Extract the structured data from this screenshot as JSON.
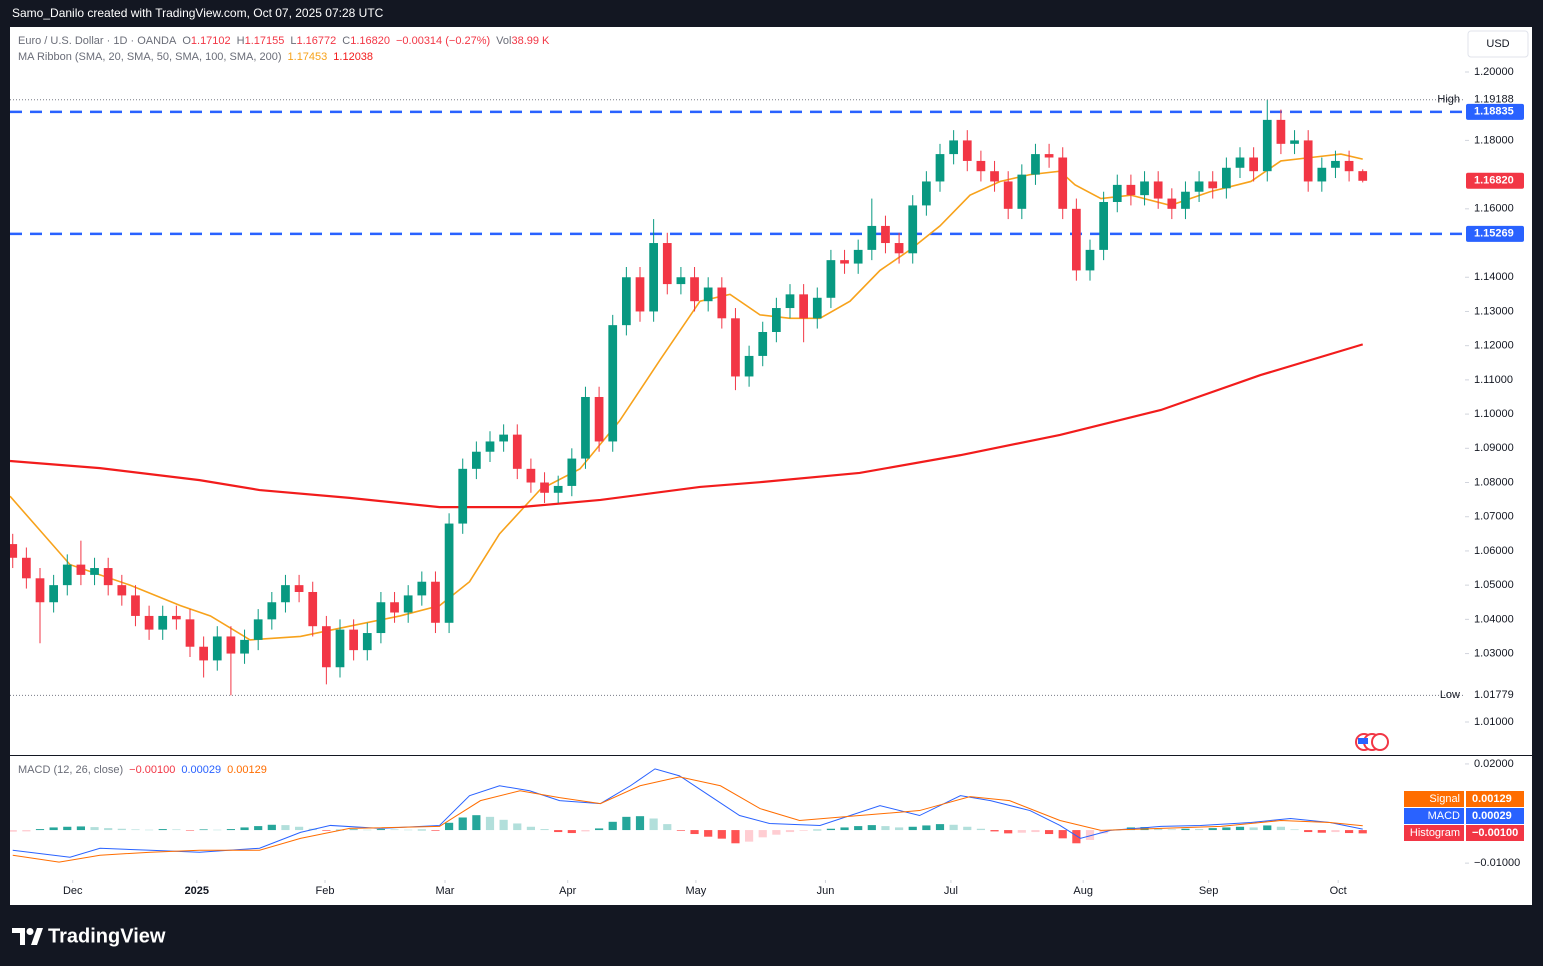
{
  "header": {
    "credit": "Samo_Danilo created with TradingView.com, Oct 07, 2025 07:28 UTC",
    "currency": "USD",
    "brand": "TradingView"
  },
  "chart_data": [
    {
      "type": "candlestick",
      "title": "Euro / U.S. Dollar · 1D · OANDA",
      "legend": [
        {
          "key": "O",
          "text": "1.17102"
        },
        {
          "key": "H",
          "text": "1.17155"
        },
        {
          "key": "L",
          "text": "1.16772"
        },
        {
          "key": "C",
          "text": "1.16820"
        }
      ],
      "change": "−0.00314 (−0.27%)",
      "volume_key": "Vol",
      "volume": "38.99 K",
      "overlay_title": "MA Ribbon (SMA, 20, SMA, 50, SMA, 100, SMA, 200)",
      "up_color": "#089981",
      "down_color": "#f23645",
      "open": [
        1.062,
        1.058,
        1.052,
        1.045,
        1.05,
        1.056,
        1.053,
        1.055,
        1.05,
        1.047,
        1.041,
        1.037,
        1.041,
        1.04,
        1.032,
        1.028,
        1.035,
        1.03,
        1.034,
        1.04,
        1.045,
        1.05,
        1.048,
        1.038,
        1.026,
        1.037,
        1.031,
        1.036,
        1.045,
        1.042,
        1.047,
        1.051,
        1.039,
        1.068,
        1.084,
        1.089,
        1.092,
        1.094,
        1.084,
        1.08,
        1.077,
        1.079,
        1.087,
        1.105,
        1.092,
        1.126,
        1.14,
        1.13,
        1.15,
        1.138,
        1.14,
        1.133,
        1.137,
        1.128,
        1.111,
        1.117,
        1.124,
        1.131,
        1.135,
        1.128,
        1.134,
        1.145,
        1.144,
        1.148,
        1.155,
        1.15,
        1.147,
        1.161,
        1.168,
        1.176,
        1.18,
        1.174,
        1.171,
        1.168,
        1.16,
        1.17,
        1.176,
        1.175,
        1.16,
        1.142,
        1.148,
        1.162,
        1.167,
        1.164,
        1.168,
        1.163,
        1.16,
        1.165,
        1.168,
        1.166,
        1.172,
        1.175,
        1.171,
        1.186,
        1.179,
        1.18,
        1.168,
        1.172,
        1.174,
        1.17102
      ],
      "high": [
        1.065,
        1.061,
        1.055,
        1.053,
        1.059,
        1.063,
        1.058,
        1.058,
        1.053,
        1.05,
        1.044,
        1.044,
        1.044,
        1.043,
        1.035,
        1.038,
        1.038,
        1.037,
        1.043,
        1.048,
        1.053,
        1.053,
        1.051,
        1.041,
        1.04,
        1.04,
        1.039,
        1.048,
        1.048,
        1.05,
        1.054,
        1.054,
        1.071,
        1.087,
        1.092,
        1.095,
        1.097,
        1.097,
        1.087,
        1.083,
        1.082,
        1.09,
        1.108,
        1.108,
        1.129,
        1.143,
        1.143,
        1.157,
        1.153,
        1.143,
        1.143,
        1.14,
        1.14,
        1.131,
        1.12,
        1.127,
        1.134,
        1.138,
        1.138,
        1.137,
        1.148,
        1.148,
        1.151,
        1.163,
        1.158,
        1.153,
        1.164,
        1.171,
        1.179,
        1.183,
        1.183,
        1.177,
        1.174,
        1.171,
        1.173,
        1.179,
        1.179,
        1.178,
        1.163,
        1.151,
        1.165,
        1.17,
        1.17,
        1.171,
        1.171,
        1.166,
        1.168,
        1.171,
        1.171,
        1.175,
        1.178,
        1.178,
        1.19188,
        1.189,
        1.183,
        1.183,
        1.175,
        1.177,
        1.177,
        1.17155
      ],
      "low": [
        1.055,
        1.049,
        1.033,
        1.042,
        1.047,
        1.05,
        1.05,
        1.047,
        1.044,
        1.038,
        1.034,
        1.034,
        1.037,
        1.029,
        1.023,
        1.025,
        1.01779,
        1.027,
        1.031,
        1.037,
        1.042,
        1.045,
        1.035,
        1.021,
        1.023,
        1.028,
        1.028,
        1.033,
        1.039,
        1.039,
        1.044,
        1.036,
        1.036,
        1.065,
        1.081,
        1.086,
        1.089,
        1.081,
        1.077,
        1.074,
        1.074,
        1.076,
        1.084,
        1.089,
        1.089,
        1.123,
        1.127,
        1.127,
        1.135,
        1.135,
        1.13,
        1.13,
        1.125,
        1.107,
        1.108,
        1.114,
        1.121,
        1.128,
        1.121,
        1.125,
        1.131,
        1.141,
        1.141,
        1.145,
        1.147,
        1.144,
        1.144,
        1.158,
        1.165,
        1.173,
        1.171,
        1.168,
        1.165,
        1.157,
        1.157,
        1.167,
        1.172,
        1.157,
        1.139,
        1.139,
        1.145,
        1.159,
        1.161,
        1.161,
        1.16,
        1.157,
        1.157,
        1.162,
        1.163,
        1.163,
        1.169,
        1.168,
        1.168,
        1.176,
        1.176,
        1.165,
        1.165,
        1.169,
        1.168,
        1.16772
      ],
      "close": [
        1.058,
        1.052,
        1.045,
        1.05,
        1.056,
        1.053,
        1.055,
        1.05,
        1.047,
        1.041,
        1.037,
        1.041,
        1.04,
        1.032,
        1.028,
        1.035,
        1.03,
        1.034,
        1.04,
        1.045,
        1.05,
        1.048,
        1.038,
        1.026,
        1.037,
        1.031,
        1.036,
        1.045,
        1.042,
        1.047,
        1.051,
        1.039,
        1.068,
        1.084,
        1.089,
        1.092,
        1.094,
        1.084,
        1.08,
        1.077,
        1.079,
        1.087,
        1.105,
        1.092,
        1.126,
        1.14,
        1.13,
        1.15,
        1.138,
        1.14,
        1.133,
        1.137,
        1.128,
        1.111,
        1.117,
        1.124,
        1.131,
        1.135,
        1.128,
        1.134,
        1.145,
        1.144,
        1.148,
        1.155,
        1.15,
        1.147,
        1.161,
        1.168,
        1.176,
        1.18,
        1.174,
        1.171,
        1.168,
        1.16,
        1.17,
        1.176,
        1.175,
        1.16,
        1.142,
        1.148,
        1.162,
        1.167,
        1.164,
        1.168,
        1.163,
        1.16,
        1.165,
        1.168,
        1.166,
        1.172,
        1.175,
        1.171,
        1.186,
        1.179,
        1.18,
        1.168,
        1.172,
        1.174,
        1.171,
        1.1682
      ],
      "last_label": "1.16820",
      "high_text": "High",
      "low_text": "Low",
      "levels": [
        1.18835,
        1.15269
      ],
      "level_color": "#2962ff",
      "series": [
        {
          "color": "#f7a21b",
          "x": [
            -0.2,
            2.0,
            4.2,
            8.6,
            12.3,
            14.5,
            17.4,
            21.1,
            24.7,
            28.4,
            31.3,
            33.5,
            35.7,
            38.7,
            41.6,
            44.5,
            47.5,
            50.4,
            52.6,
            54.8,
            57.0,
            59.2,
            61.4,
            63.6,
            65.8,
            68.0,
            70.2,
            72.4,
            74.6,
            76.8,
            77.9,
            79.8,
            82.0,
            84.9,
            87.8,
            90.8,
            93.0,
            95.2,
            97.4,
            99
          ],
          "values": [
            1.076,
            1.066,
            1.056,
            1.05,
            1.044,
            1.041,
            1.034,
            1.035,
            1.038,
            1.041,
            1.044,
            1.051,
            1.065,
            1.078,
            1.084,
            1.098,
            1.116,
            1.133,
            1.135,
            1.129,
            1.128,
            1.128,
            1.133,
            1.142,
            1.148,
            1.155,
            1.164,
            1.168,
            1.17,
            1.171,
            1.167,
            1.163,
            1.164,
            1.161,
            1.165,
            1.168,
            1.174,
            1.175,
            1.176,
            1.17453
          ]
        },
        {
          "color": "#f21c1c",
          "x": [
            -0.2,
            6.4,
            13.7,
            18.1,
            24.7,
            31.3,
            37.2,
            43.1,
            50.4,
            54.8,
            62.1,
            69.5,
            76.8,
            84.2,
            91.5,
            99
          ],
          "values": [
            1.0863,
            1.0842,
            1.0807,
            1.0778,
            1.0755,
            1.0728,
            1.0728,
            1.0749,
            1.0787,
            1.0801,
            1.0828,
            1.088,
            1.0939,
            1.1012,
            1.1114,
            1.12038
          ]
        }
      ],
      "xlim": [
        -0.2,
        106.5
      ],
      "xticks": [
        {
          "value": 4.4,
          "label": "Dec"
        },
        {
          "value": 13.5,
          "label": "2025"
        },
        {
          "value": 22.9,
          "label": "Feb"
        },
        {
          "value": 31.7,
          "label": "Mar"
        },
        {
          "value": 40.7,
          "label": "Apr"
        },
        {
          "value": 50.1,
          "label": "May"
        },
        {
          "value": 59.6,
          "label": "Jun"
        },
        {
          "value": 68.8,
          "label": "Jul"
        },
        {
          "value": 78.5,
          "label": "Aug"
        },
        {
          "value": 87.7,
          "label": "Sep"
        },
        {
          "value": 97.2,
          "label": "Oct"
        }
      ],
      "ylim": [
        1.00035,
        1.21315
      ],
      "yticks": [
        {
          "value": 1.2,
          "label": "1.20000"
        },
        {
          "value": 1.18,
          "label": "1.18000"
        },
        {
          "value": 1.16,
          "label": "1.16000"
        },
        {
          "value": 1.14,
          "label": "1.14000"
        },
        {
          "value": 1.13,
          "label": "1.13000"
        },
        {
          "value": 1.12,
          "label": "1.12000"
        },
        {
          "value": 1.11,
          "label": "1.11000"
        },
        {
          "value": 1.1,
          "label": "1.10000"
        },
        {
          "value": 1.09,
          "label": "1.09000"
        },
        {
          "value": 1.08,
          "label": "1.08000"
        },
        {
          "value": 1.07,
          "label": "1.07000"
        },
        {
          "value": 1.06,
          "label": "1.06000"
        },
        {
          "value": 1.05,
          "label": "1.05000"
        },
        {
          "value": 1.04,
          "label": "1.04000"
        },
        {
          "value": 1.03,
          "label": "1.03000"
        },
        {
          "value": 1.01,
          "label": "1.01000"
        }
      ]
    },
    {
      "type": "macd",
      "title": "MACD (12, 26, close)",
      "histogram": {
        "name": "Histogram",
        "last_label": "−0.00100",
        "colors": [
          "#26a69a",
          "#b2dfdb",
          "#ffcdd2",
          "#ff5252"
        ],
        "values": [
          -0.0005,
          -0.0004,
          0.0003,
          0.0008,
          0.001,
          0.0011,
          0.0009,
          0.0006,
          0.0004,
          0.0002,
          0.0001,
          0.0003,
          0.0002,
          -0.0001,
          0.0002,
          0.0001,
          0.0003,
          0.0008,
          0.0012,
          0.0016,
          0.0015,
          0.001,
          0.0004,
          -0.0002,
          0.0001,
          0.0002,
          0.0001,
          0.0003,
          0.0002,
          0.0001,
          0.0001,
          -0.0002,
          0.0022,
          0.0038,
          0.0045,
          0.004,
          0.0031,
          0.002,
          0.001,
          0.0003,
          -0.0006,
          -0.0009,
          -0.0004,
          0.0005,
          0.0025,
          0.004,
          0.0042,
          0.0035,
          0.0018,
          -0.0002,
          -0.0012,
          -0.002,
          -0.0026,
          -0.004,
          -0.0035,
          -0.0022,
          -0.0014,
          -0.0006,
          -0.0002,
          0.0001,
          0.0004,
          0.0008,
          0.0012,
          0.0015,
          0.0012,
          0.0008,
          0.001,
          0.0014,
          0.0018,
          0.0016,
          0.001,
          0.0004,
          -0.0004,
          -0.001,
          -0.0008,
          -0.0006,
          -0.0012,
          -0.0025,
          -0.004,
          -0.003,
          -0.001,
          0.0002,
          0.0008,
          0.0009,
          0.0005,
          0.0002,
          0.0004,
          0.0003,
          0.0006,
          0.0008,
          0.001,
          0.0008,
          0.0014,
          0.001,
          0.0002,
          -0.0006,
          -0.0008,
          -0.0006,
          -0.0009,
          -0.001
        ]
      },
      "series": [
        {
          "name": "MACD",
          "color": "#2962ff",
          "x": [
            0,
            4.2,
            6.4,
            10.1,
            13.7,
            18.1,
            21.1,
            23.3,
            26.9,
            31.3,
            33.5,
            35.7,
            37.9,
            40.1,
            43.1,
            45.3,
            47.1,
            48.9,
            51.1,
            53.3,
            55.5,
            59.2,
            63.6,
            66.5,
            69.5,
            71.7,
            74.6,
            76.8,
            78.3,
            80.5,
            84.2,
            87.1,
            90.8,
            93.7,
            96.6,
            99
          ],
          "values": [
            -0.0061,
            -0.0082,
            -0.0055,
            -0.0061,
            -0.0067,
            -0.0055,
            -0.0007,
            0.0014,
            0.0005,
            0.0014,
            0.0104,
            0.0134,
            0.0119,
            0.0089,
            0.008,
            0.0134,
            0.0185,
            0.0164,
            0.0104,
            0.0044,
            0.002,
            0.0014,
            0.0074,
            0.0044,
            0.0104,
            0.0089,
            0.0059,
            0.0014,
            -0.0025,
            -0.0001,
            0.0011,
            0.0014,
            0.0023,
            0.0035,
            0.0023,
            0.00029
          ]
        },
        {
          "name": "Signal",
          "color": "#ff6d00",
          "x": [
            0,
            3.4,
            6.4,
            10.1,
            13.7,
            18.1,
            21.1,
            24.7,
            31.3,
            34.3,
            37.2,
            40.1,
            43.1,
            46.0,
            48.9,
            51.9,
            54.8,
            57.7,
            62.1,
            66.5,
            70.2,
            73.1,
            76.8,
            79.8,
            84.2,
            88.6,
            93.0,
            96.6,
            99
          ],
          "values": [
            -0.0076,
            -0.0097,
            -0.0076,
            -0.0067,
            -0.0061,
            -0.0061,
            -0.0025,
            0.0005,
            0.0011,
            0.0089,
            0.0119,
            0.0098,
            0.008,
            0.0134,
            0.0161,
            0.0134,
            0.0065,
            0.0029,
            0.0044,
            0.0059,
            0.0101,
            0.0089,
            0.0029,
            -0.0001,
            0.0005,
            0.0011,
            0.0029,
            0.0023,
            0.00129
          ]
        }
      ],
      "ylim": [
        -0.0151,
        0.0224
      ],
      "yticks": [
        {
          "value": 0.02,
          "label": "0.02000"
        },
        {
          "value": -0.01,
          "label": "−0.01000"
        }
      ]
    }
  ]
}
